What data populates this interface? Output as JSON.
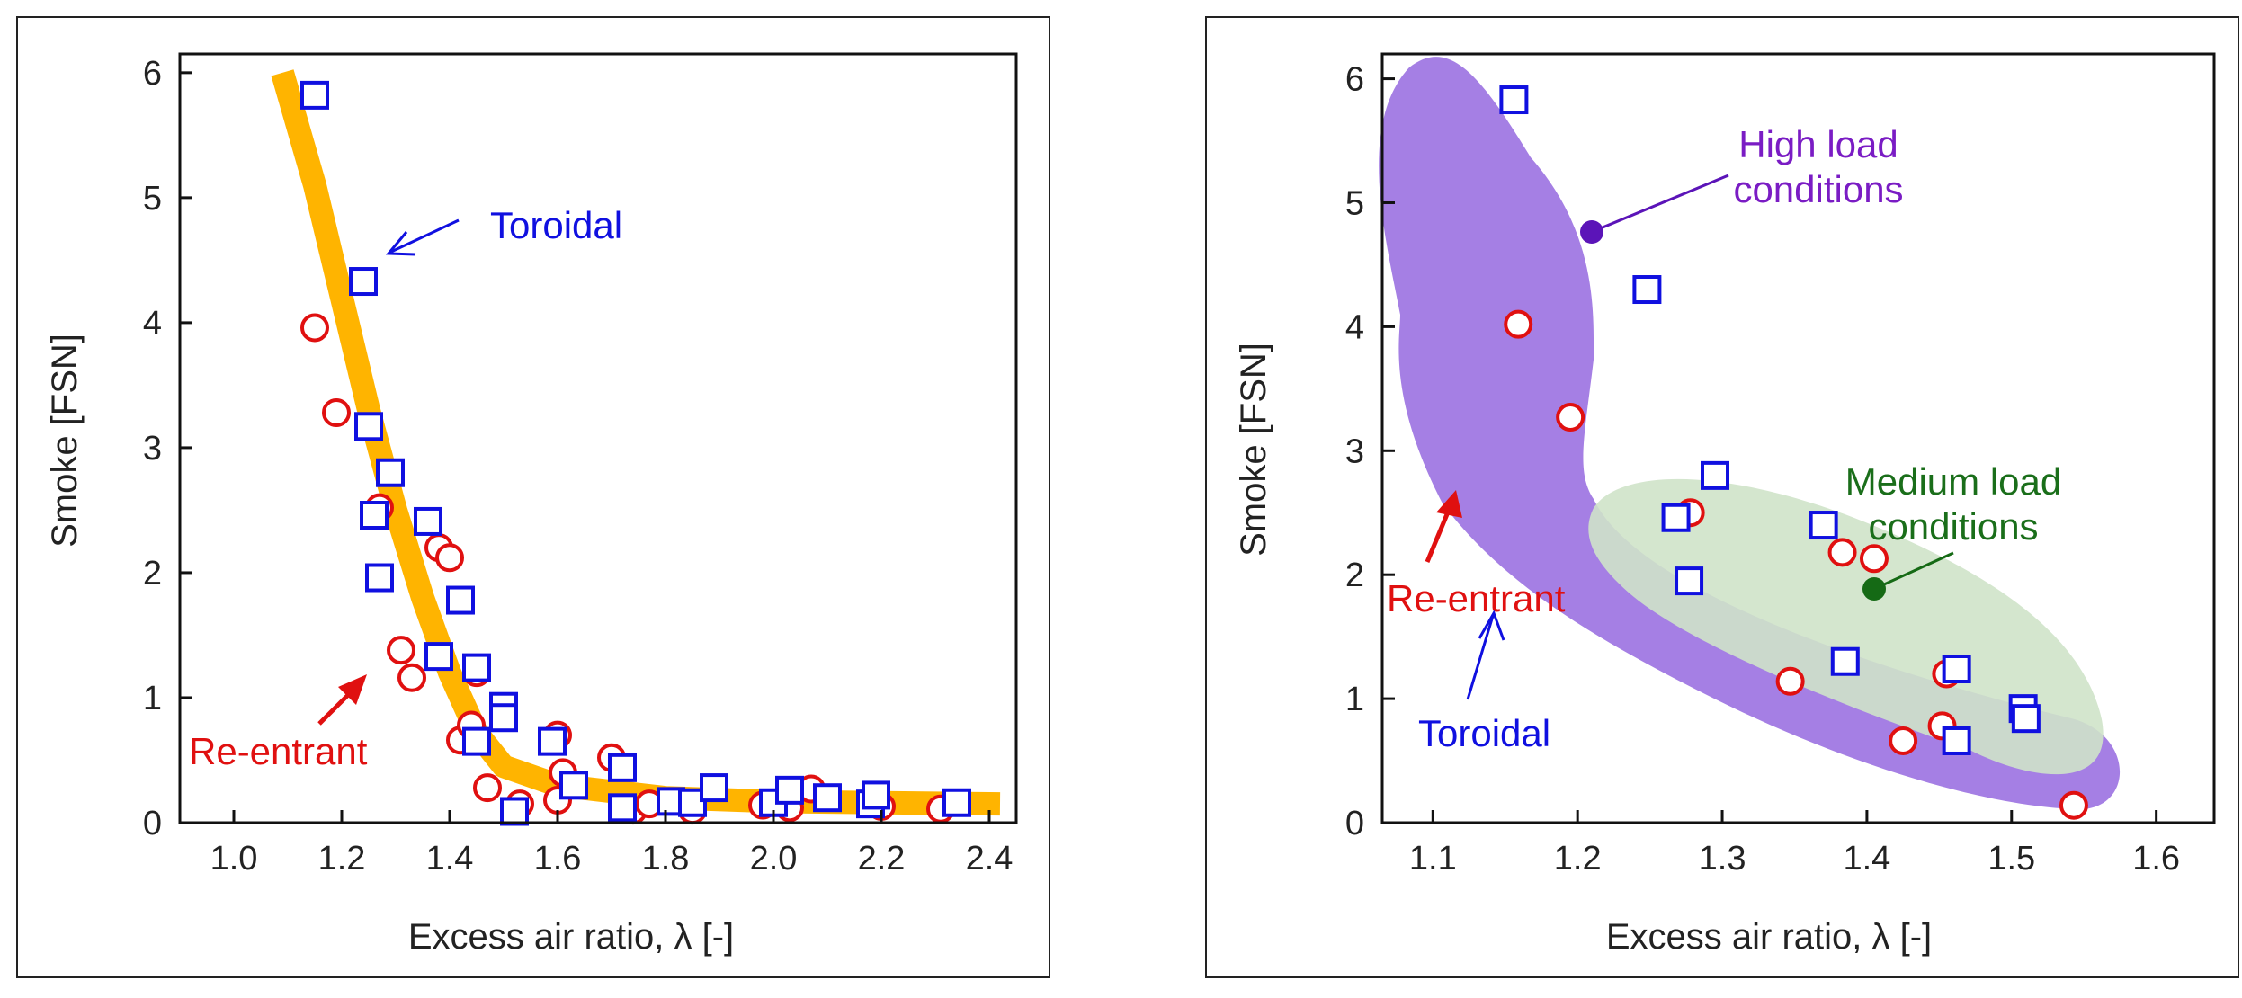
{
  "colors": {
    "toroidal": "#1010e0",
    "reentrant": "#e01010",
    "fit_curve": "#ffb400",
    "high_region": "#a57fe4",
    "medium_region": "#cfe3c9",
    "high_text": "#7a1cc4",
    "medium_text": "#1a6e1a",
    "high_dot": "#5b14b8",
    "medium_dot": "#156a15"
  },
  "chart_data": [
    {
      "type": "scatter",
      "xlabel": "Excess air ratio, λ [-]",
      "ylabel": "Smoke [FSN]",
      "xlim": [
        0.9,
        2.45
      ],
      "ylim": [
        0,
        6.15
      ],
      "xticks": [
        "1.0",
        "1.2",
        "1.4",
        "1.6",
        "1.8",
        "2.0",
        "2.2",
        "2.4"
      ],
      "yticks": [
        "0",
        "1",
        "2",
        "3",
        "4",
        "5",
        "6"
      ],
      "grid": false,
      "fit_curve": {
        "x": [
          1.09,
          1.15,
          1.2,
          1.25,
          1.3,
          1.35,
          1.4,
          1.45,
          1.5,
          1.6,
          1.8,
          2.0,
          2.2,
          2.42
        ],
        "y": [
          6.0,
          5.1,
          4.2,
          3.3,
          2.5,
          1.8,
          1.2,
          0.72,
          0.45,
          0.3,
          0.2,
          0.17,
          0.16,
          0.15
        ]
      },
      "series": [
        {
          "name": "Toroidal",
          "marker": "square",
          "x": [
            1.15,
            1.24,
            1.25,
            1.26,
            1.27,
            1.29,
            1.36,
            1.38,
            1.42,
            1.45,
            1.45,
            1.5,
            1.5,
            1.52,
            1.59,
            1.63,
            1.72,
            1.72,
            1.81,
            1.85,
            1.89,
            2.0,
            2.03,
            2.1,
            2.18,
            2.19,
            2.34
          ],
          "y": [
            5.82,
            4.33,
            3.17,
            2.46,
            1.96,
            2.8,
            2.41,
            1.33,
            1.78,
            1.24,
            0.65,
            0.93,
            0.84,
            0.09,
            0.65,
            0.3,
            0.44,
            0.12,
            0.17,
            0.16,
            0.28,
            0.16,
            0.26,
            0.2,
            0.15,
            0.22,
            0.16
          ]
        },
        {
          "name": "Re-entrant",
          "marker": "circle",
          "x": [
            1.15,
            1.19,
            1.27,
            1.31,
            1.33,
            1.38,
            1.4,
            1.42,
            1.44,
            1.45,
            1.47,
            1.53,
            1.6,
            1.61,
            1.6,
            1.7,
            1.74,
            1.77,
            1.85,
            1.98,
            2.03,
            2.07,
            2.2,
            2.31
          ],
          "y": [
            3.96,
            3.28,
            2.52,
            1.38,
            1.16,
            2.2,
            2.12,
            0.66,
            0.78,
            1.2,
            0.28,
            0.15,
            0.7,
            0.4,
            0.18,
            0.52,
            0.1,
            0.15,
            0.1,
            0.14,
            0.12,
            0.27,
            0.13,
            0.11
          ]
        }
      ],
      "annotations": [
        {
          "text": "Toroidal",
          "color": "toroidal"
        },
        {
          "text": "Re-entrant",
          "color": "reentrant"
        }
      ]
    },
    {
      "type": "scatter",
      "xlabel": "Excess air ratio, λ [-]",
      "ylabel": "Smoke [FSN]",
      "xlim": [
        1.065,
        1.64
      ],
      "ylim": [
        0,
        6.2
      ],
      "xticks": [
        "1.1",
        "1.2",
        "1.3",
        "1.4",
        "1.5",
        "1.6"
      ],
      "yticks": [
        "0",
        "1",
        "2",
        "3",
        "4",
        "5",
        "6"
      ],
      "grid": false,
      "regions": [
        {
          "name": "High load conditions",
          "label_lines": [
            "High load",
            "conditions"
          ],
          "color": "high_region"
        },
        {
          "name": "Medium load conditions",
          "label_lines": [
            "Medium load",
            "conditions"
          ],
          "color": "medium_region"
        }
      ],
      "series": [
        {
          "name": "Toroidal",
          "marker": "square",
          "x": [
            1.156,
            1.248,
            1.295,
            1.268,
            1.277,
            1.37,
            1.385,
            1.462,
            1.462,
            1.508,
            1.51
          ],
          "y": [
            5.83,
            4.3,
            2.8,
            2.46,
            1.95,
            2.4,
            1.3,
            1.24,
            0.66,
            0.92,
            0.84
          ]
        },
        {
          "name": "Re-entrant",
          "marker": "circle",
          "x": [
            1.159,
            1.195,
            1.278,
            1.383,
            1.405,
            1.347,
            1.455,
            1.452,
            1.425,
            1.543
          ],
          "y": [
            4.02,
            3.27,
            2.5,
            2.18,
            2.13,
            1.14,
            1.2,
            0.78,
            0.66,
            0.14
          ]
        }
      ],
      "annotations": [
        {
          "text": "Re-entrant",
          "color": "reentrant"
        },
        {
          "text": "Toroidal",
          "color": "toroidal"
        }
      ]
    }
  ]
}
